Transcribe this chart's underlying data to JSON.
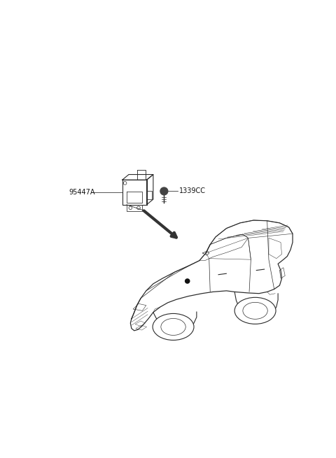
{
  "bg_color": "#ffffff",
  "fig_width": 4.8,
  "fig_height": 6.55,
  "dpi": 100,
  "line_color": "#2a2a2a",
  "label_color": "#111111",
  "lw_car": 0.8,
  "lw_detail": 0.5,
  "lw_thick": 1.2,
  "label_95447A": "95447A",
  "label_1339CC": "1339CC",
  "font_size": 7.0
}
